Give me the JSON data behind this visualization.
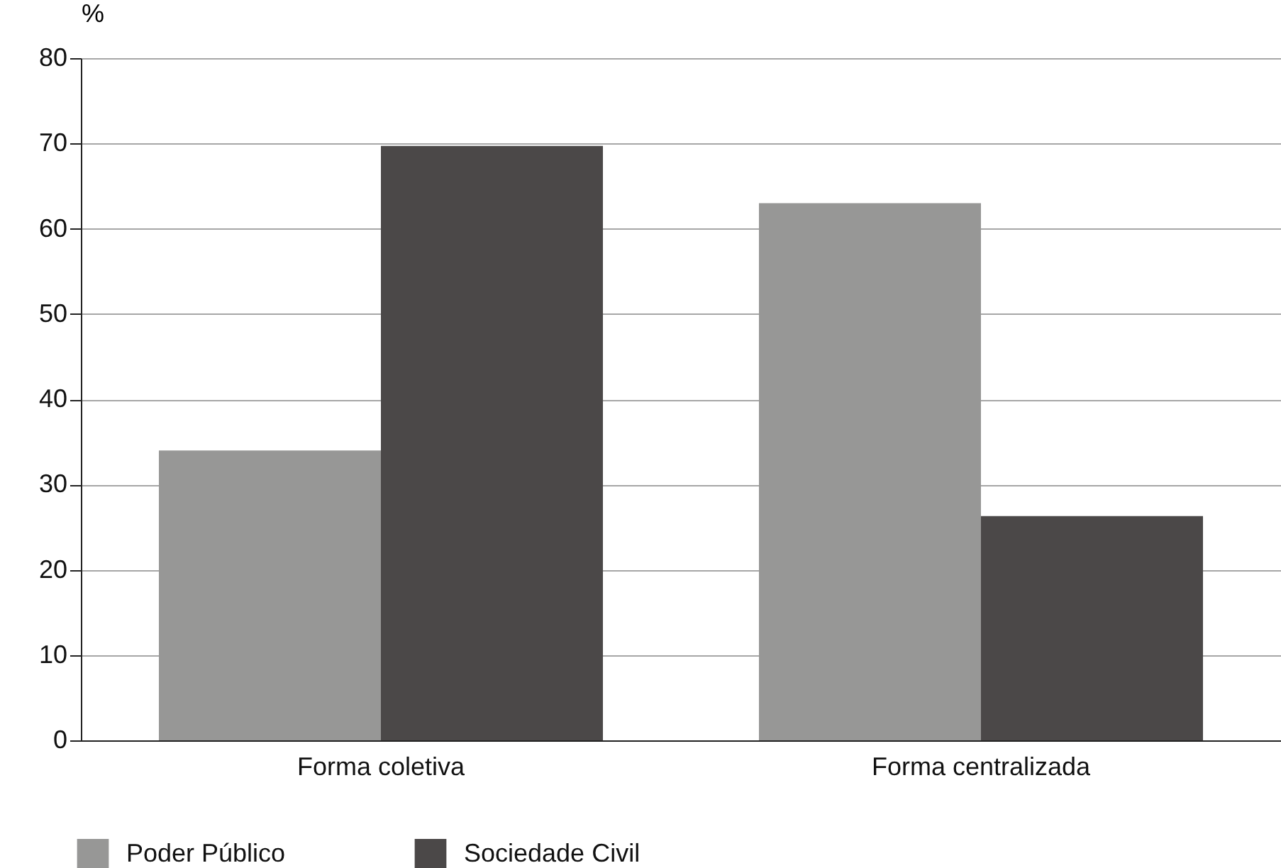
{
  "chart_data": {
    "type": "bar",
    "ylabel": "%",
    "categories": [
      "Forma coletiva",
      "Forma centralizada"
    ],
    "series": [
      {
        "name": "Poder Público",
        "color": "#979796",
        "values": [
          34,
          63
        ]
      },
      {
        "name": "Sociedade Civil",
        "color": "#4b4848",
        "values": [
          69.7,
          26.3
        ]
      }
    ],
    "ylim": [
      0,
      80
    ],
    "yticks": [
      0,
      10,
      20,
      30,
      40,
      50,
      60,
      70,
      80
    ],
    "grid": "y",
    "legend": "bottom left"
  }
}
